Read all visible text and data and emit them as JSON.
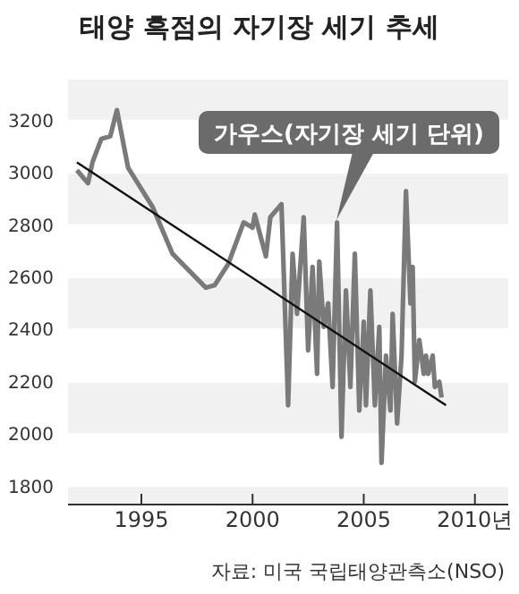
{
  "chart_data": {
    "type": "line",
    "title": "태양 흑점의 자기장 세기 추세",
    "xlim": [
      1991.7,
      2011.5
    ],
    "ylim": [
      1730,
      3360
    ],
    "xticks": [
      1995,
      2000,
      2005,
      {
        "value": 2010,
        "label": "2010년"
      }
    ],
    "yticks": [
      1800,
      2000,
      2200,
      2400,
      2600,
      2800,
      3000,
      3200
    ],
    "grid": "y",
    "marker": "none",
    "line_style": "solid",
    "series": [
      {
        "color": "#7a7a7a",
        "x": [
          1992.1,
          1992.6,
          1992.8,
          1993.2,
          1993.6,
          1993.9,
          1994.4,
          1995.5,
          1996.4,
          1997.9,
          1998.3,
          1998.9,
          1999.6,
          2000.0,
          2000.1,
          2000.6,
          2000.8,
          2001.2,
          2001.3,
          2001.6,
          2001.8,
          2002.0,
          2002.3,
          2002.5,
          2002.7,
          2002.9,
          2003.0,
          2003.2,
          2003.4,
          2003.6,
          2003.8,
          2004.0,
          2004.2,
          2004.4,
          2004.6,
          2004.8,
          2005.0,
          2005.1,
          2005.3,
          2005.5,
          2005.7,
          2005.8,
          2006.0,
          2006.2,
          2006.3,
          2006.5,
          2006.7,
          2006.9,
          2007.1,
          2007.2,
          2007.3,
          2007.5,
          2007.7,
          2007.8,
          2007.9,
          2008.1,
          2008.2,
          2008.4,
          2008.5
        ],
        "values": [
          3010,
          2960,
          3040,
          3130,
          3140,
          3240,
          3020,
          2870,
          2690,
          2560,
          2570,
          2650,
          2810,
          2790,
          2840,
          2680,
          2830,
          2870,
          2880,
          2110,
          2690,
          2460,
          2830,
          2320,
          2640,
          2230,
          2660,
          2410,
          2500,
          2180,
          2810,
          1990,
          2550,
          2180,
          2690,
          2090,
          2430,
          2110,
          2550,
          2110,
          2410,
          1890,
          2300,
          2090,
          2460,
          2040,
          2300,
          2930,
          2500,
          2640,
          2200,
          2360,
          2230,
          2300,
          2230,
          2300,
          2180,
          2200,
          2140
        ]
      },
      {
        "type": "line",
        "color": "#111111",
        "x": [
          1992.1,
          2008.7
        ],
        "values": [
          3040,
          2110
        ]
      }
    ],
    "annotations": [
      "가우스(자기장 세기 단위)",
      "자료: 미국 국립태양관측소(NSO)"
    ]
  }
}
